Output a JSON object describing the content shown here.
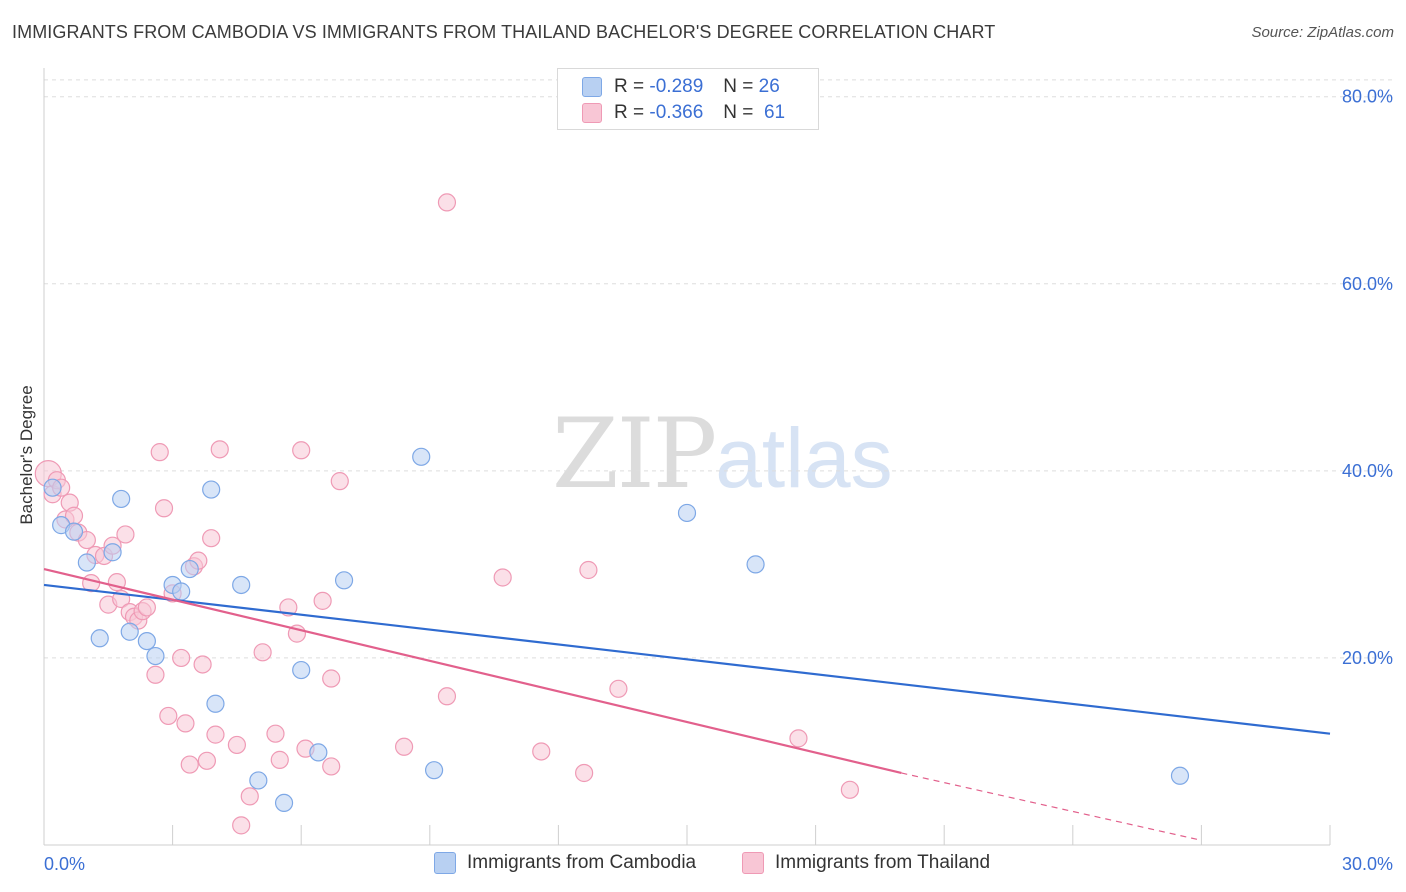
{
  "title": "IMMIGRANTS FROM CAMBODIA VS IMMIGRANTS FROM THAILAND BACHELOR'S DEGREE CORRELATION CHART",
  "source": "Source: ZipAtlas.com",
  "watermark": {
    "zip": "ZIP",
    "atlas": "atlas"
  },
  "legend": {
    "r_label": "R =",
    "n_label": "N =",
    "rows": [
      {
        "r": "-0.289",
        "n": "26"
      },
      {
        "r": "-0.366",
        "n": "61"
      }
    ]
  },
  "colors": {
    "cambodia_fill": "#b8d0f2",
    "cambodia_stroke": "#7ea8e6",
    "cambodia_line": "#2f6bd0",
    "thailand_fill": "#f8c6d5",
    "thailand_stroke": "#ef9ab5",
    "thailand_line": "#e2608c",
    "tick_label": "#3b6fd4"
  },
  "chart_data": {
    "type": "scatter",
    "title": "IMMIGRANTS FROM CAMBODIA VS IMMIGRANTS FROM THAILAND BACHELOR'S DEGREE CORRELATION CHART",
    "xlabel": "",
    "ylabel": "Bachelor's Degree",
    "xlim": [
      0,
      30
    ],
    "ylim": [
      0,
      82
    ],
    "x_tick_labels": [
      "0.0%",
      "30.0%"
    ],
    "y_tick_values": [
      20,
      40,
      60,
      80
    ],
    "y_tick_labels": [
      "20.0%",
      "40.0%",
      "60.0%",
      "80.0%"
    ],
    "grid": true,
    "legend_position": "top-center",
    "series": [
      {
        "name": "Immigrants from Cambodia",
        "r": -0.289,
        "n": 26,
        "trend": {
          "x": [
            0,
            30
          ],
          "y": [
            27.8,
            11.9
          ]
        },
        "points": [
          {
            "x": 0.2,
            "y": 38.2
          },
          {
            "x": 0.4,
            "y": 34.2
          },
          {
            "x": 0.7,
            "y": 33.5
          },
          {
            "x": 1.0,
            "y": 30.2
          },
          {
            "x": 1.3,
            "y": 22.1
          },
          {
            "x": 1.6,
            "y": 31.3
          },
          {
            "x": 1.8,
            "y": 37.0
          },
          {
            "x": 2.0,
            "y": 22.8
          },
          {
            "x": 2.4,
            "y": 21.8
          },
          {
            "x": 2.6,
            "y": 20.2
          },
          {
            "x": 3.0,
            "y": 27.8
          },
          {
            "x": 3.2,
            "y": 27.1
          },
          {
            "x": 3.4,
            "y": 29.5
          },
          {
            "x": 3.9,
            "y": 38.0
          },
          {
            "x": 4.0,
            "y": 15.1
          },
          {
            "x": 4.6,
            "y": 27.8
          },
          {
            "x": 5.0,
            "y": 6.9
          },
          {
            "x": 5.6,
            "y": 4.5
          },
          {
            "x": 6.0,
            "y": 18.7
          },
          {
            "x": 6.4,
            "y": 9.9
          },
          {
            "x": 7.0,
            "y": 28.3
          },
          {
            "x": 8.8,
            "y": 41.5
          },
          {
            "x": 9.1,
            "y": 8.0
          },
          {
            "x": 15.0,
            "y": 35.5
          },
          {
            "x": 16.6,
            "y": 30.0
          },
          {
            "x": 26.5,
            "y": 7.4
          }
        ]
      },
      {
        "name": "Immigrants from Thailand",
        "r": -0.366,
        "n": 61,
        "trend": {
          "x": [
            0,
            20
          ],
          "y": [
            29.5,
            7.7
          ]
        },
        "trend_extension": {
          "x": [
            20,
            27
          ],
          "y": [
            7.7,
            0.5
          ]
        },
        "points": [
          {
            "x": 0.1,
            "y": 39.7
          },
          {
            "x": 0.2,
            "y": 37.5
          },
          {
            "x": 0.3,
            "y": 39.0
          },
          {
            "x": 0.4,
            "y": 38.2
          },
          {
            "x": 0.6,
            "y": 36.6
          },
          {
            "x": 0.5,
            "y": 34.8
          },
          {
            "x": 0.7,
            "y": 35.2
          },
          {
            "x": 0.8,
            "y": 33.4
          },
          {
            "x": 1.0,
            "y": 32.6
          },
          {
            "x": 1.2,
            "y": 31.0
          },
          {
            "x": 1.4,
            "y": 30.9
          },
          {
            "x": 1.1,
            "y": 28.0
          },
          {
            "x": 1.6,
            "y": 32.0
          },
          {
            "x": 1.5,
            "y": 25.7
          },
          {
            "x": 1.7,
            "y": 28.1
          },
          {
            "x": 1.8,
            "y": 26.3
          },
          {
            "x": 1.9,
            "y": 33.2
          },
          {
            "x": 2.0,
            "y": 24.9
          },
          {
            "x": 2.1,
            "y": 24.4
          },
          {
            "x": 2.2,
            "y": 24.0
          },
          {
            "x": 2.3,
            "y": 25.0
          },
          {
            "x": 2.4,
            "y": 25.4
          },
          {
            "x": 2.6,
            "y": 18.2
          },
          {
            "x": 2.7,
            "y": 42.0
          },
          {
            "x": 2.8,
            "y": 36.0
          },
          {
            "x": 2.9,
            "y": 13.8
          },
          {
            "x": 3.0,
            "y": 26.9
          },
          {
            "x": 3.2,
            "y": 20.0
          },
          {
            "x": 3.3,
            "y": 13.0
          },
          {
            "x": 3.4,
            "y": 8.6
          },
          {
            "x": 3.5,
            "y": 29.8
          },
          {
            "x": 3.6,
            "y": 30.4
          },
          {
            "x": 3.7,
            "y": 19.3
          },
          {
            "x": 3.8,
            "y": 9.0
          },
          {
            "x": 3.9,
            "y": 32.8
          },
          {
            "x": 4.0,
            "y": 11.8
          },
          {
            "x": 4.1,
            "y": 42.3
          },
          {
            "x": 4.5,
            "y": 10.7
          },
          {
            "x": 4.6,
            "y": 2.1
          },
          {
            "x": 4.8,
            "y": 5.2
          },
          {
            "x": 5.1,
            "y": 20.6
          },
          {
            "x": 5.4,
            "y": 11.9
          },
          {
            "x": 5.5,
            "y": 9.1
          },
          {
            "x": 5.7,
            "y": 25.4
          },
          {
            "x": 5.9,
            "y": 22.6
          },
          {
            "x": 6.0,
            "y": 42.2
          },
          {
            "x": 6.1,
            "y": 10.3
          },
          {
            "x": 6.5,
            "y": 26.1
          },
          {
            "x": 6.7,
            "y": 17.8
          },
          {
            "x": 6.9,
            "y": 38.9
          },
          {
            "x": 6.7,
            "y": 8.4
          },
          {
            "x": 8.4,
            "y": 10.5
          },
          {
            "x": 9.4,
            "y": 15.9
          },
          {
            "x": 9.4,
            "y": 68.7
          },
          {
            "x": 10.7,
            "y": 28.6
          },
          {
            "x": 11.6,
            "y": 10.0
          },
          {
            "x": 12.6,
            "y": 7.7
          },
          {
            "x": 12.7,
            "y": 29.4
          },
          {
            "x": 13.4,
            "y": 16.7
          },
          {
            "x": 17.6,
            "y": 11.4
          },
          {
            "x": 18.8,
            "y": 5.9
          }
        ]
      }
    ]
  }
}
